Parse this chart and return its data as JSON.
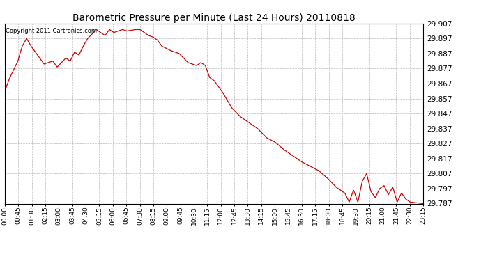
{
  "title": "Barometric Pressure per Minute (Last 24 Hours) 20110818",
  "copyright": "Copyright 2011 Cartronics.com",
  "line_color": "#cc0000",
  "bg_color": "#ffffff",
  "grid_color": "#bbbbbb",
  "ylim": [
    29.787,
    29.907
  ],
  "yticks": [
    29.787,
    29.797,
    29.807,
    29.817,
    29.827,
    29.837,
    29.847,
    29.857,
    29.867,
    29.877,
    29.887,
    29.897,
    29.907
  ],
  "xtick_labels": [
    "00:00",
    "00:45",
    "01:30",
    "02:15",
    "03:00",
    "03:45",
    "04:30",
    "05:15",
    "06:00",
    "06:45",
    "07:30",
    "08:15",
    "09:00",
    "09:45",
    "10:30",
    "11:15",
    "12:00",
    "12:45",
    "13:30",
    "14:15",
    "15:00",
    "15:45",
    "16:30",
    "17:15",
    "18:00",
    "18:45",
    "19:30",
    "20:15",
    "21:00",
    "21:45",
    "22:30",
    "23:15"
  ]
}
